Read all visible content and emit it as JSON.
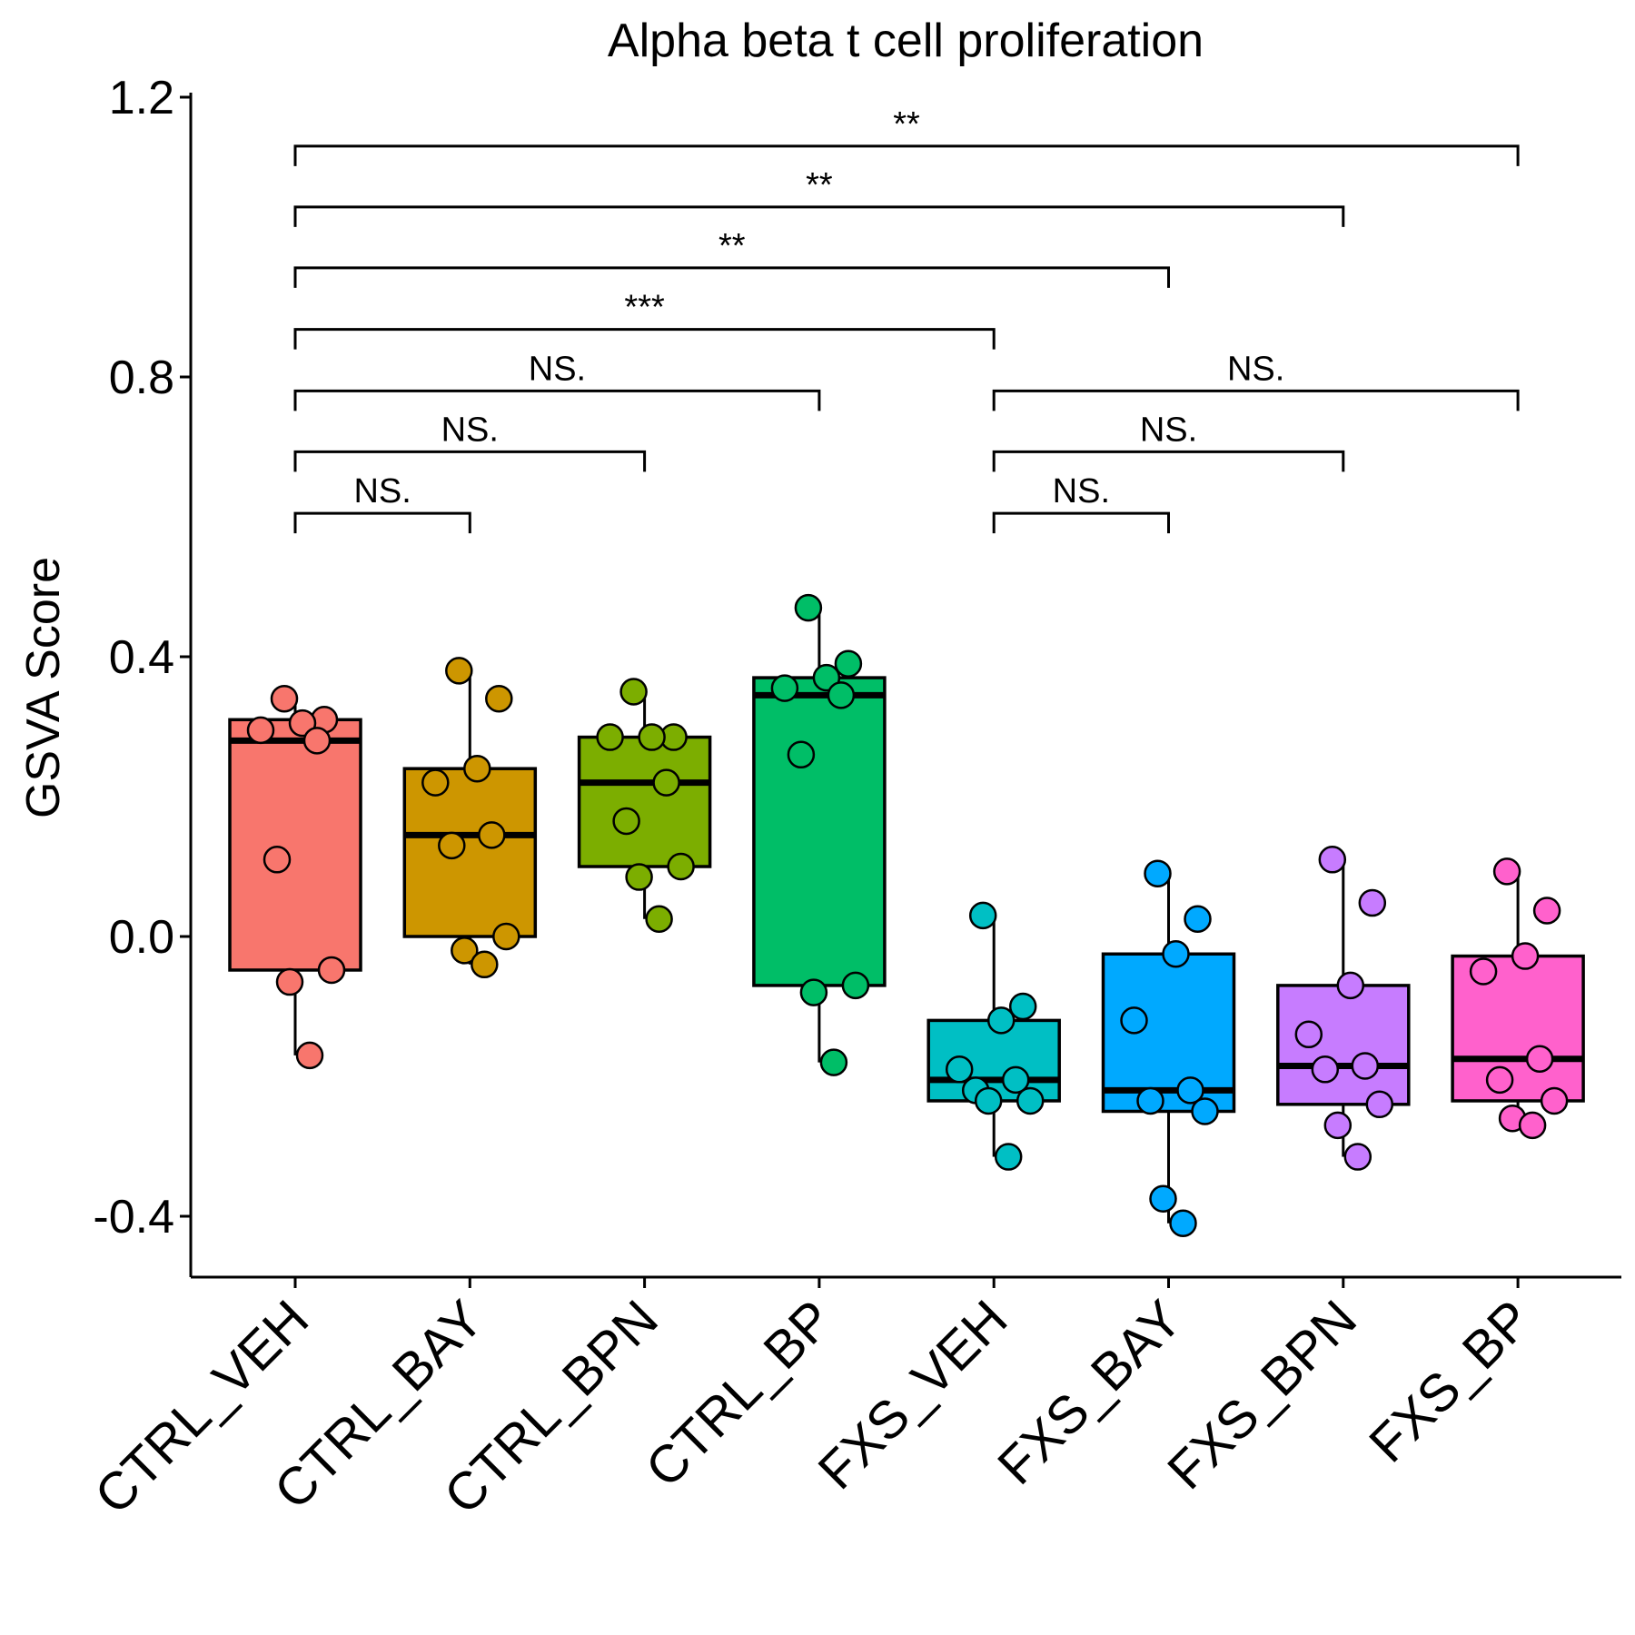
{
  "chart_data": {
    "type": "box",
    "title": "Alpha beta t cell proliferation",
    "xlabel": "",
    "ylabel": "GSVA Score",
    "ylim": [
      -0.48,
      1.21
    ],
    "yticks": [
      -0.4,
      0.0,
      0.4,
      0.8,
      1.2
    ],
    "ytick_labels": [
      "-0.4",
      "0.0",
      "0.4",
      "0.8",
      "1.2"
    ],
    "categories": [
      "CTRL_VEH",
      "CTRL_BAY",
      "CTRL_BPN",
      "CTRL_BP",
      "FXS_VEH",
      "FXS_BAY",
      "FXS_BPN",
      "FXS_BP"
    ],
    "legend": "none",
    "grid": false,
    "groups": [
      {
        "name": "CTRL_VEH",
        "color": "#F8766D",
        "q1": -0.048,
        "median": 0.28,
        "q3": 0.31,
        "whisker_low": -0.17,
        "whisker_high": 0.34,
        "points": [
          0.34,
          0.31,
          0.305,
          0.295,
          0.28,
          0.11,
          -0.048,
          -0.065,
          -0.17
        ]
      },
      {
        "name": "CTRL_BAY",
        "color": "#CD9600",
        "q1": 0.0,
        "median": 0.145,
        "q3": 0.24,
        "whisker_low": -0.04,
        "whisker_high": 0.38,
        "points": [
          0.38,
          0.34,
          0.24,
          0.22,
          0.145,
          0.13,
          0.0,
          -0.02,
          -0.04
        ]
      },
      {
        "name": "CTRL_BPN",
        "color": "#7CAE00",
        "q1": 0.1,
        "median": 0.22,
        "q3": 0.285,
        "whisker_low": 0.025,
        "whisker_high": 0.35,
        "points": [
          0.35,
          0.285,
          0.285,
          0.285,
          0.22,
          0.165,
          0.1,
          0.085,
          0.025
        ]
      },
      {
        "name": "CTRL_BP",
        "color": "#00BE67",
        "q1": -0.07,
        "median": 0.345,
        "q3": 0.37,
        "whisker_low": -0.18,
        "whisker_high": 0.47,
        "points": [
          0.47,
          0.39,
          0.37,
          0.355,
          0.345,
          0.26,
          -0.07,
          -0.08,
          -0.18
        ]
      },
      {
        "name": "FXS_VEH",
        "color": "#00BFC4",
        "q1": -0.235,
        "median": -0.205,
        "q3": -0.12,
        "whisker_low": -0.315,
        "whisker_high": 0.03,
        "points": [
          0.03,
          -0.1,
          -0.12,
          -0.19,
          -0.205,
          -0.22,
          -0.235,
          -0.235,
          -0.315
        ]
      },
      {
        "name": "FXS_BAY",
        "color": "#00A9FF",
        "q1": -0.25,
        "median": -0.22,
        "q3": -0.025,
        "whisker_low": -0.41,
        "whisker_high": 0.09,
        "points": [
          0.09,
          0.025,
          -0.025,
          -0.12,
          -0.22,
          -0.235,
          -0.25,
          -0.375,
          -0.41
        ]
      },
      {
        "name": "FXS_BPN",
        "color": "#C77CFF",
        "q1": -0.24,
        "median": -0.185,
        "q3": -0.07,
        "whisker_low": -0.315,
        "whisker_high": 0.11,
        "points": [
          0.11,
          0.048,
          -0.07,
          -0.14,
          -0.185,
          -0.19,
          -0.24,
          -0.27,
          -0.315
        ]
      },
      {
        "name": "FXS_BP",
        "color": "#FF61CC",
        "q1": -0.235,
        "median": -0.175,
        "q3": -0.028,
        "whisker_low": -0.27,
        "whisker_high": 0.093,
        "points": [
          0.093,
          0.037,
          -0.028,
          -0.05,
          -0.175,
          -0.205,
          -0.235,
          -0.26,
          -0.27
        ]
      }
    ],
    "comparisons": [
      {
        "from": "CTRL_VEH",
        "to": "CTRL_BAY",
        "label": "NS.",
        "y": 0.605
      },
      {
        "from": "CTRL_VEH",
        "to": "CTRL_BPN",
        "label": "NS.",
        "y": 0.693
      },
      {
        "from": "CTRL_VEH",
        "to": "CTRL_BP",
        "label": "NS.",
        "y": 0.78
      },
      {
        "from": "CTRL_VEH",
        "to": "FXS_VEH",
        "label": "***",
        "y": 0.868
      },
      {
        "from": "CTRL_VEH",
        "to": "FXS_BAY",
        "label": "**",
        "y": 0.956
      },
      {
        "from": "CTRL_VEH",
        "to": "FXS_BPN",
        "label": "**",
        "y": 1.043
      },
      {
        "from": "CTRL_VEH",
        "to": "FXS_BP",
        "label": "**",
        "y": 1.13
      },
      {
        "from": "FXS_VEH",
        "to": "FXS_BAY",
        "label": "NS.",
        "y": 0.605
      },
      {
        "from": "FXS_VEH",
        "to": "FXS_BPN",
        "label": "NS.",
        "y": 0.693
      },
      {
        "from": "FXS_VEH",
        "to": "FXS_BP",
        "label": "NS.",
        "y": 0.78
      }
    ]
  }
}
